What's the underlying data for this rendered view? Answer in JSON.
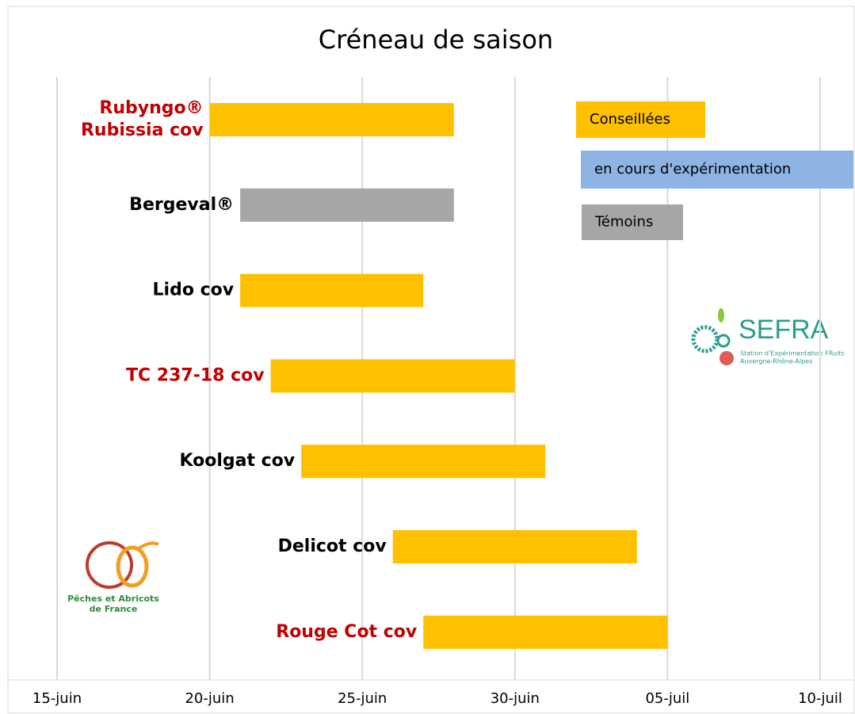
{
  "chart_data": {
    "type": "floating-bar",
    "title": "Créneau de saison",
    "xlim": [
      15,
      40
    ],
    "xticks": [
      {
        "value": 15,
        "label": "15-juin"
      },
      {
        "value": 20,
        "label": "20-juin"
      },
      {
        "value": 25,
        "label": "25-juin"
      },
      {
        "value": 30,
        "label": "30-juin"
      },
      {
        "value": 35,
        "label": "05-juil"
      },
      {
        "value": 40,
        "label": "10-juil"
      }
    ],
    "grid": true,
    "legend": [
      {
        "name": "Conseillées",
        "color": "#ffc000"
      },
      {
        "name": "en cours d'expérimentation",
        "color": "#8eb4e3"
      },
      {
        "name": "Témoins",
        "color": "#a6a6a6"
      }
    ],
    "bars": [
      {
        "label": [
          "Rubyngo®",
          "Rubissia cov"
        ],
        "label_color": "#c00000",
        "start": 20,
        "end": 28,
        "group": 0
      },
      {
        "label": [
          "Bergeval®"
        ],
        "label_color": "#000000",
        "start": 21,
        "end": 28,
        "group": 2
      },
      {
        "label": [
          "Lido cov"
        ],
        "label_color": "#000000",
        "start": 21,
        "end": 27,
        "group": 0
      },
      {
        "label": [
          "TC 237-18 cov"
        ],
        "label_color": "#c00000",
        "start": 22,
        "end": 30,
        "group": 0
      },
      {
        "label": [
          "Koolgat cov"
        ],
        "label_color": "#000000",
        "start": 23,
        "end": 31,
        "group": 0
      },
      {
        "label": [
          "Delicot cov"
        ],
        "label_color": "#000000",
        "start": 26,
        "end": 34,
        "group": 0
      },
      {
        "label": [
          "Rouge Cot cov"
        ],
        "label_color": "#c00000",
        "start": 27,
        "end": 35,
        "group": 0
      }
    ],
    "logos": {
      "sefra": [
        "SEFRA",
        "Station d'Expérimentation FRuits",
        "Auvergne-Rhône-Alpes"
      ],
      "pechers": [
        "Pêches et Abricots",
        "de France"
      ]
    }
  }
}
